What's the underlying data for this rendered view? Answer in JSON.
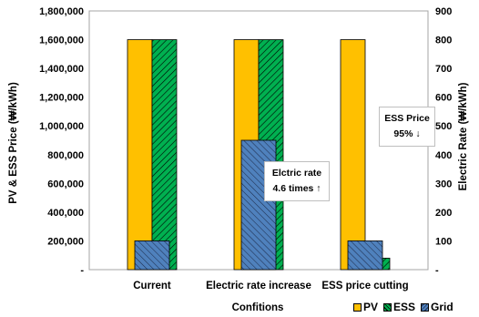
{
  "chart_data": {
    "type": "bar",
    "categories": [
      "Current",
      "Electric rate increase",
      "ESS price cutting"
    ],
    "series": [
      {
        "name": "PV",
        "axis": "left",
        "values": [
          1600000,
          1600000,
          1600000
        ],
        "color": "#FFC000",
        "pattern": "solid"
      },
      {
        "name": "ESS",
        "axis": "left",
        "values": [
          1600000,
          1600000,
          80000
        ],
        "color": "#00B050",
        "pattern": "diagonal-hatch"
      },
      {
        "name": "Grid",
        "axis": "right",
        "values": [
          100,
          450,
          100
        ],
        "color": "#4F81BD",
        "pattern": "diagonal-hatch"
      }
    ],
    "xlabel": "Confitions",
    "ylabel": "PV & ESS Price (₩/kWh)",
    "y2label": "Electric Rate (₩/kWh)",
    "ylim": [
      0,
      1800000
    ],
    "y2lim": [
      0,
      900
    ],
    "yticks": [
      "-",
      "200,000",
      "400,000",
      "600,000",
      "800,000",
      "1,000,000",
      "1,200,000",
      "1,400,000",
      "1,600,000",
      "1,800,000"
    ],
    "y2ticks": [
      "-",
      "100",
      "200",
      "300",
      "400",
      "500",
      "600",
      "700",
      "800",
      "900"
    ],
    "legend_position": "bottom-right",
    "grid": false,
    "annotations": [
      {
        "line1": "Elctric rate",
        "line2": "4.6 times ↑"
      },
      {
        "line1": "ESS Price",
        "line2": "95% ↓"
      }
    ]
  }
}
